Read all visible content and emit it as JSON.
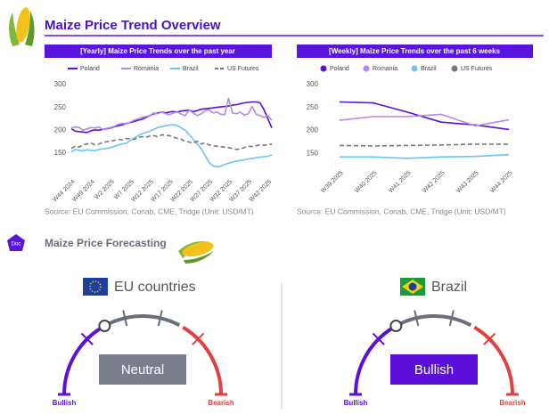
{
  "header": {
    "title": "Maize Price Trend Overview"
  },
  "chart_data": [
    {
      "type": "line",
      "title": "[Yearly] Maize Price Trends over the past year",
      "categories": [
        "W44 2024",
        null,
        null,
        null,
        null,
        "W49 2024",
        null,
        null,
        null,
        null,
        "W2 2025",
        null,
        null,
        null,
        null,
        "W7 2025",
        null,
        null,
        null,
        null,
        "W12 2025",
        null,
        null,
        null,
        null,
        "W17 2025",
        null,
        null,
        null,
        null,
        "W22 2025",
        null,
        null,
        null,
        null,
        "W27 2025",
        null,
        null,
        null,
        null,
        "W32 2025",
        null,
        null,
        null,
        null,
        "W37 2025",
        null,
        null,
        null,
        null,
        "W42 2025",
        null
      ],
      "series": [
        {
          "name": "Poland",
          "color": "#5a10d8",
          "dashed": false,
          "values": [
            203,
            198,
            197,
            196,
            195,
            199,
            201,
            200,
            202,
            203,
            205,
            208,
            210,
            212,
            215,
            217,
            219,
            222,
            224,
            228,
            232,
            236,
            238,
            240,
            238,
            240,
            241,
            240,
            242,
            243,
            244,
            241,
            243,
            246,
            247,
            248,
            249,
            250,
            251,
            252,
            253,
            255,
            256,
            258,
            260,
            261,
            262,
            262,
            260,
            245,
            225,
            205
          ]
        },
        {
          "name": "Romania",
          "color": "#b48ae8",
          "dashed": false,
          "values": [
            205,
            207,
            206,
            200,
            203,
            206,
            205,
            207,
            202,
            204,
            206,
            209,
            213,
            215,
            214,
            218,
            222,
            225,
            228,
            230,
            232,
            238,
            236,
            240,
            236,
            234,
            238,
            240,
            235,
            232,
            244,
            238,
            232,
            236,
            242,
            245,
            238,
            240,
            235,
            234,
            270,
            238,
            236,
            240,
            233,
            236,
            252,
            235,
            232,
            228,
            232,
            222
          ]
        },
        {
          "name": "Brazil",
          "color": "#6cc4ef",
          "dashed": false,
          "values": [
            152,
            158,
            156,
            155,
            157,
            156,
            155,
            158,
            159,
            160,
            162,
            165,
            168,
            170,
            172,
            178,
            183,
            188,
            192,
            195,
            198,
            202,
            206,
            208,
            210,
            211,
            212,
            210,
            205,
            200,
            190,
            180,
            170,
            160,
            145,
            130,
            122,
            120,
            121,
            125,
            128,
            130,
            132,
            134,
            135,
            137,
            138,
            140,
            141,
            142,
            143,
            146
          ]
        },
        {
          "name": "US Futures",
          "color": "#777777",
          "dashed": true,
          "values": [
            160,
            165,
            163,
            168,
            170,
            172,
            168,
            170,
            173,
            175,
            176,
            178,
            180,
            179,
            182,
            181,
            180,
            184,
            186,
            185,
            187,
            188,
            186,
            190,
            189,
            188,
            185,
            182,
            180,
            176,
            174,
            172,
            176,
            170,
            172,
            168,
            166,
            165,
            164,
            163,
            162,
            160,
            158,
            159,
            162,
            165,
            164,
            166,
            168,
            167,
            168,
            170
          ]
        }
      ],
      "ylim": [
        105,
        300
      ],
      "yticks": [
        150,
        200,
        250,
        300
      ],
      "grid": false,
      "legend": "top",
      "source": "Source: EU Commission, Conab, CME, Tridge (Unit: USD/MT)"
    },
    {
      "type": "line",
      "title": "[Weekly] Maize Price Trends over the past 6 weeks",
      "categories": [
        "W39 2025",
        "W40 2025",
        "W41 2025",
        "W42 2025",
        "W43 2025",
        "W44 2025"
      ],
      "series": [
        {
          "name": "Poland",
          "color": "#5a10d8",
          "dashed": false,
          "values": [
            262,
            260,
            240,
            218,
            212,
            202
          ]
        },
        {
          "name": "Romania",
          "color": "#b48ae8",
          "dashed": false,
          "values": [
            222,
            230,
            230,
            235,
            210,
            223
          ]
        },
        {
          "name": "Brazil",
          "color": "#6cc4ef",
          "dashed": false,
          "values": [
            142,
            142,
            139,
            142,
            143,
            147
          ]
        },
        {
          "name": "US Futures",
          "color": "#777777",
          "dashed": true,
          "values": [
            167,
            166,
            167,
            168,
            170,
            170
          ]
        }
      ],
      "ylim": [
        125,
        300
      ],
      "yticks": [
        150,
        200,
        250,
        300
      ],
      "grid": false,
      "legend": "top",
      "source": "Source: EU Commission, Conab, CME, Tridge (Unit: USD/MT)"
    }
  ],
  "forecast": {
    "badge": "Doc",
    "title": "Maize Price Forecasting",
    "gauges": [
      {
        "region": "EU countries",
        "outlook": "Neutral",
        "color": "#7b7e8c",
        "left_label": "Bullish",
        "right_label": "Bearish"
      },
      {
        "region": "Brazil",
        "outlook": "Bullish",
        "color": "#5a10d8",
        "left_label": "Bullish",
        "right_label": "Bearish"
      }
    ]
  }
}
